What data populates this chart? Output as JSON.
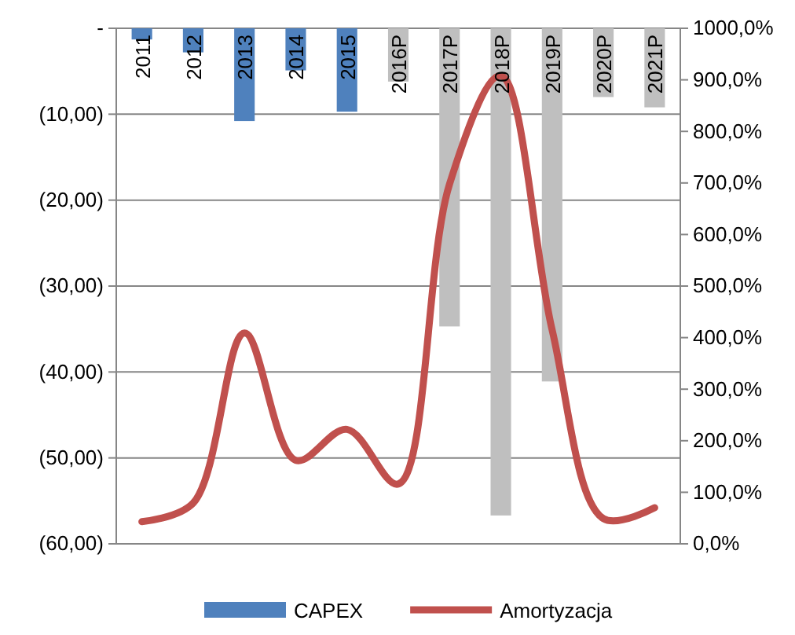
{
  "chart_data": {
    "type": "bar",
    "categories": [
      "2011",
      "2012",
      "2013",
      "2014",
      "2015",
      "2016P",
      "2017P",
      "2018P",
      "2019P",
      "2020P",
      "2021P"
    ],
    "series": [
      {
        "name": "CAPEX",
        "color": "#4f81bd",
        "colors": [
          "#4f81bd",
          "#4f81bd",
          "#4f81bd",
          "#4f81bd",
          "#4f81bd",
          "#bfbfbf",
          "#bfbfbf",
          "#bfbfbf",
          "#bfbfbf",
          "#bfbfbf",
          "#bfbfbf"
        ],
        "values": [
          -1.3,
          -2.8,
          -10.8,
          -4.9,
          -9.7,
          -6.2,
          -34.7,
          -56.7,
          -41.1,
          -8.0,
          -9.2
        ]
      },
      {
        "name": "Amortyzacja",
        "type": "line",
        "axis": "y2",
        "color": "#c0504d",
        "values": [
          43,
          79,
          409,
          162,
          222,
          116,
          698,
          908,
          415,
          49,
          70
        ]
      }
    ],
    "ylim": [
      -60,
      0
    ],
    "yticks": [
      {
        "value": 0,
        "label": "-"
      },
      {
        "value": -10,
        "label": "(10,00)"
      },
      {
        "value": -20,
        "label": "(20,00)"
      },
      {
        "value": -30,
        "label": "(30,00)"
      },
      {
        "value": -40,
        "label": "(40,00)"
      },
      {
        "value": -50,
        "label": "(50,00)"
      },
      {
        "value": -60,
        "label": "(60,00)"
      }
    ],
    "y2lim": [
      0,
      1000
    ],
    "y2ticks": [
      {
        "value": 0,
        "label": "0,0%"
      },
      {
        "value": 100,
        "label": "100,0%"
      },
      {
        "value": 200,
        "label": "200,0%"
      },
      {
        "value": 300,
        "label": "300,0%"
      },
      {
        "value": 400,
        "label": "400,0%"
      },
      {
        "value": 500,
        "label": "500,0%"
      },
      {
        "value": 600,
        "label": "600,0%"
      },
      {
        "value": 700,
        "label": "700,0%"
      },
      {
        "value": 800,
        "label": "800,0%"
      },
      {
        "value": 900,
        "label": "900,0%"
      },
      {
        "value": 1000,
        "label": "1000,0%"
      }
    ],
    "grid": "y",
    "legend": "bottom",
    "marker": "none",
    "line_style": "solid"
  }
}
